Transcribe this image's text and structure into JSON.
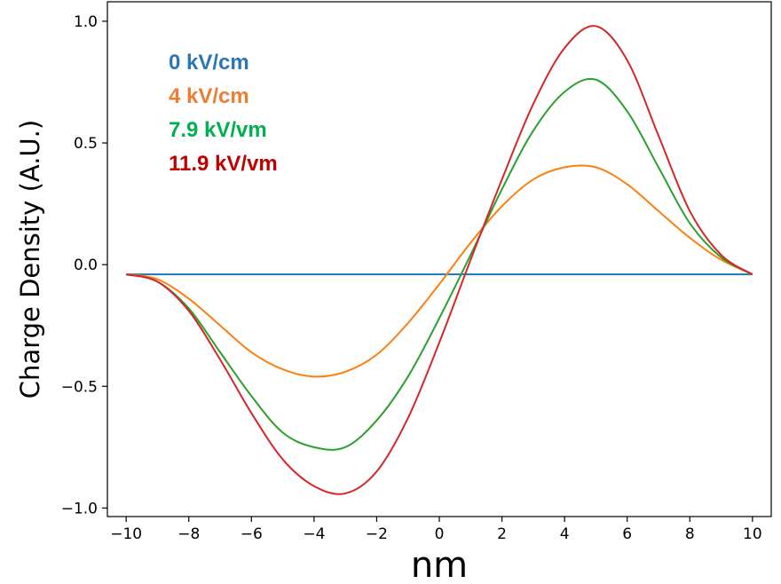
{
  "chart_data": {
    "type": "line",
    "title": "",
    "xlabel": "nm",
    "ylabel": "Charge Density (A.U.)",
    "xlim": [
      -10.6,
      10.6
    ],
    "ylim": [
      -1.035,
      1.08
    ],
    "xticks": [
      -10,
      -8,
      -6,
      -4,
      -2,
      0,
      2,
      4,
      6,
      8,
      10
    ],
    "xtick_labels": [
      "−10",
      "−8",
      "−6",
      "−4",
      "−2",
      "0",
      "2",
      "4",
      "6",
      "8",
      "10"
    ],
    "yticks": [
      -1.0,
      -0.5,
      0.0,
      0.5,
      1.0
    ],
    "ytick_labels": [
      "−1.0",
      "−0.5",
      "0.0",
      "0.5",
      "1.0"
    ],
    "grid": false,
    "legend_position": "top-left",
    "x": [
      -10,
      -9,
      -8,
      -7,
      -6,
      -5,
      -4,
      -3,
      -2,
      -1,
      0,
      1,
      2,
      3,
      4,
      5,
      6,
      7,
      8,
      9,
      10
    ],
    "series": [
      {
        "name": "0 kV/cm",
        "color": "#1f77b4",
        "legend_color": "#2e75b6",
        "values": [
          -0.04,
          -0.04,
          -0.04,
          -0.04,
          -0.04,
          -0.04,
          -0.04,
          -0.04,
          -0.04,
          -0.04,
          -0.04,
          -0.04,
          -0.04,
          -0.04,
          -0.04,
          -0.04,
          -0.04,
          -0.04,
          -0.04,
          -0.04,
          -0.04
        ]
      },
      {
        "name": "4 kV/cm",
        "color": "#ff7f0e",
        "legend_color": "#ed7d31",
        "values": [
          -0.04,
          -0.06,
          -0.14,
          -0.25,
          -0.36,
          -0.43,
          -0.46,
          -0.44,
          -0.37,
          -0.24,
          -0.08,
          0.09,
          0.24,
          0.35,
          0.4,
          0.4,
          0.33,
          0.22,
          0.11,
          0.02,
          -0.04
        ]
      },
      {
        "name": "7.9 kV/vm",
        "color": "#2ca02c",
        "legend_color": "#00b050",
        "values": [
          -0.04,
          -0.07,
          -0.18,
          -0.36,
          -0.54,
          -0.69,
          -0.75,
          -0.75,
          -0.64,
          -0.46,
          -0.22,
          0.04,
          0.31,
          0.55,
          0.71,
          0.76,
          0.63,
          0.4,
          0.17,
          0.03,
          -0.04
        ]
      },
      {
        "name": "11.9 kV/vm",
        "color": "#d62728",
        "legend_color": "#c00000",
        "values": [
          -0.04,
          -0.07,
          -0.19,
          -0.39,
          -0.61,
          -0.8,
          -0.91,
          -0.94,
          -0.85,
          -0.63,
          -0.32,
          0.02,
          0.35,
          0.66,
          0.89,
          0.98,
          0.84,
          0.53,
          0.22,
          0.04,
          -0.04
        ]
      }
    ]
  }
}
